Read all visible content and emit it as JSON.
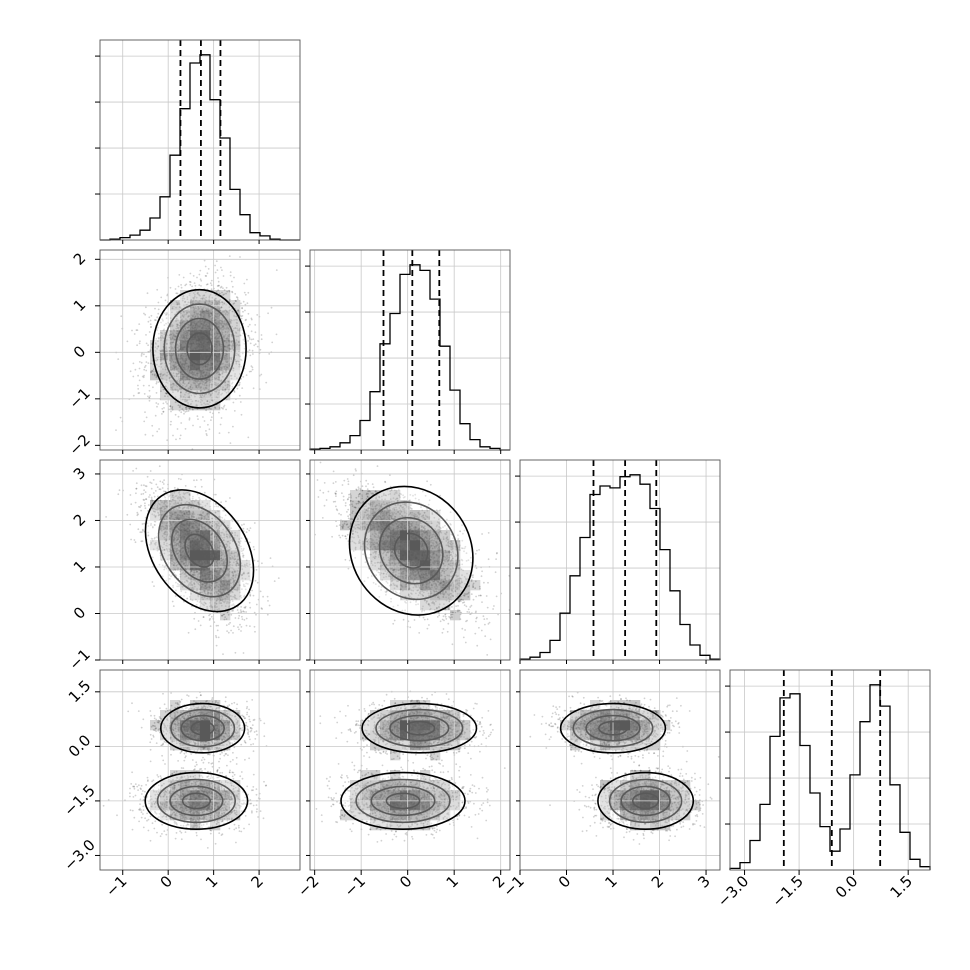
{
  "chart_data": {
    "type": "corner",
    "title": "",
    "xlabel": "",
    "ylabel": "",
    "grid": true,
    "parameters": [
      {
        "range": [
          -1.5,
          2.9
        ],
        "ticks": [
          -1,
          0,
          1,
          2
        ],
        "tick_labels": [
          "−1",
          "0",
          "1",
          "2"
        ]
      },
      {
        "range": [
          -2.1,
          2.2
        ],
        "ticks": [
          -2,
          -1,
          0,
          1,
          2
        ],
        "tick_labels": [
          "−2",
          "−1",
          "0",
          "1",
          "2"
        ]
      },
      {
        "range": [
          -1.0,
          3.3
        ],
        "ticks": [
          -1,
          0,
          1,
          2,
          3
        ],
        "tick_labels": [
          "−1",
          "0",
          "1",
          "2",
          "3"
        ]
      },
      {
        "range": [
          -3.4,
          2.1
        ],
        "ticks": [
          -3.0,
          -1.5,
          0.0,
          1.5
        ],
        "tick_labels": [
          "−3.0",
          "−1.5",
          "0.0",
          "1.5"
        ]
      }
    ],
    "quantile_lines": [
      [
        0.27,
        0.72,
        1.15
      ],
      [
        -0.52,
        0.1,
        0.68
      ],
      [
        0.58,
        1.26,
        1.93
      ],
      [
        -1.92,
        -0.6,
        0.73
      ]
    ],
    "histograms": [
      {
        "bins": [
          -1.5,
          -1.28,
          -1.06,
          -0.84,
          -0.62,
          -0.4,
          -0.18,
          0.04,
          0.26,
          0.48,
          0.7,
          0.92,
          1.14,
          1.36,
          1.58,
          1.8,
          2.02,
          2.24,
          2.46,
          2.68,
          2.9
        ],
        "counts": [
          0,
          1,
          3,
          6,
          12,
          27,
          53,
          104,
          161,
          217,
          227,
          172,
          125,
          62,
          31,
          9,
          5,
          1,
          0,
          0
        ]
      },
      {
        "bins": [
          -2.1,
          -1.885,
          -1.67,
          -1.455,
          -1.24,
          -1.025,
          -0.81,
          -0.595,
          -0.38,
          -0.165,
          0.05,
          0.265,
          0.48,
          0.695,
          0.91,
          1.125,
          1.34,
          1.555,
          1.77,
          1.985,
          2.2
        ],
        "counts": [
          1,
          2,
          4,
          9,
          18,
          37,
          73,
          133,
          171,
          220,
          232,
          225,
          189,
          130,
          75,
          33,
          13,
          4,
          2,
          0
        ]
      },
      {
        "bins": [
          -1.0,
          -0.785,
          -0.57,
          -0.355,
          -0.14,
          0.075,
          0.29,
          0.505,
          0.72,
          0.935,
          1.15,
          1.365,
          1.58,
          1.795,
          2.01,
          2.225,
          2.44,
          2.655,
          2.87,
          3.085,
          3.3
        ],
        "counts": [
          1,
          3,
          8,
          21,
          50,
          90,
          131,
          177,
          186,
          184,
          196,
          198,
          188,
          162,
          118,
          74,
          38,
          16,
          5,
          1
        ]
      },
      {
        "bins": [
          -3.4,
          -3.125,
          -2.85,
          -2.575,
          -2.3,
          -2.025,
          -1.75,
          -1.475,
          -1.2,
          -0.925,
          -0.65,
          -0.375,
          -0.1,
          0.175,
          0.45,
          0.725,
          1.0,
          1.275,
          1.55,
          1.825,
          2.1
        ],
        "counts": [
          2,
          9,
          36,
          80,
          163,
          210,
          215,
          152,
          94,
          53,
          23,
          50,
          116,
          181,
          226,
          200,
          104,
          46,
          13,
          4
        ]
      }
    ],
    "scatter_components": [
      {
        "weight": 0.5,
        "mean": [
          0.76,
          0.25,
          1.0,
          0.5
        ],
        "sd": [
          0.45,
          0.6,
          0.55,
          0.33
        ],
        "corr_x_y": 0.1
      },
      {
        "weight": 0.5,
        "mean": [
          0.62,
          -0.1,
          1.7,
          -1.5
        ],
        "sd": [
          0.55,
          0.65,
          0.5,
          0.38
        ],
        "corr_x_y": -0.05
      }
    ],
    "contour_levels": [
      "0.5σ",
      "1σ",
      "1.5σ",
      "2σ"
    ]
  }
}
